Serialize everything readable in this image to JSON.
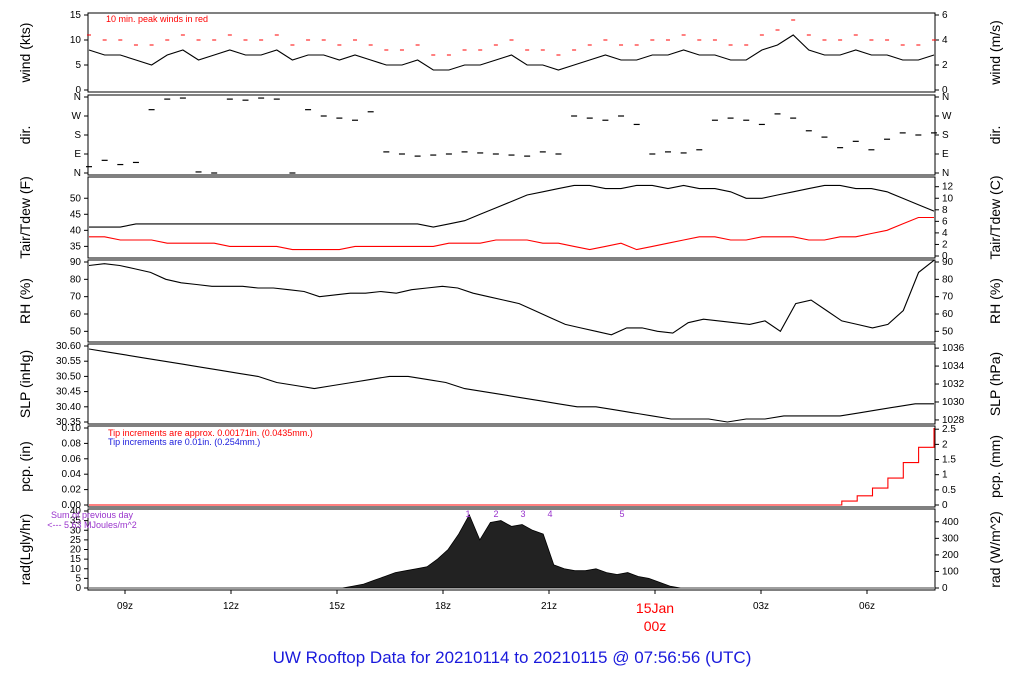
{
  "footer_title": "UW Rooftop Data for 20210114  to  20210115 @ 07:56:56  (UTC)",
  "colors": {
    "line": "#000000",
    "accent": "#ff0000",
    "blue": "#1a1adc",
    "purple": "#9933cc"
  },
  "x_axis": {
    "ticks": [
      "09z",
      "12z",
      "15z",
      "18z",
      "21z",
      "00z",
      "03z",
      "06z"
    ],
    "date_label": "15Jan",
    "date_sub": "00z"
  },
  "chart_data": [
    {
      "type": "line",
      "ylabel_left": "wind (kts)",
      "ylabel_right": "wind (m/s)",
      "ylim": [
        0,
        15
      ],
      "yticks_left": [
        "0",
        "5",
        "10",
        "15"
      ],
      "yticks_right": [
        "0",
        "2",
        "4",
        "6"
      ],
      "annotation": "10 min. peak winds in red",
      "series": [
        {
          "values": [
            8,
            7,
            7,
            6,
            5,
            7,
            8,
            6,
            7,
            8,
            7,
            7,
            8,
            6,
            7,
            7,
            6,
            7,
            6,
            5,
            5,
            6,
            4,
            4,
            5,
            5,
            6,
            7,
            5,
            5,
            4,
            5,
            6,
            7,
            6,
            6,
            7,
            7,
            8,
            7,
            7,
            6,
            6,
            8,
            9,
            11,
            8,
            7,
            7,
            8,
            7,
            7,
            6,
            6,
            7
          ]
        },
        {
          "name": "10 min. peak winds in red",
          "values": [
            11,
            10,
            10,
            9,
            9,
            10,
            11,
            10,
            10,
            11,
            10,
            10,
            11,
            9,
            10,
            10,
            9,
            10,
            9,
            8,
            8,
            9,
            7,
            7,
            8,
            8,
            9,
            10,
            8,
            8,
            7,
            8,
            9,
            10,
            9,
            9,
            10,
            10,
            11,
            10,
            10,
            9,
            9,
            11,
            12,
            14,
            11,
            10,
            10,
            11,
            10,
            10,
            9,
            9,
            10
          ]
        }
      ]
    },
    {
      "type": "scatter",
      "ylabel": "dir.",
      "yticks_left": [
        "N",
        "E",
        "S",
        "W",
        "N"
      ],
      "yticks_right": [
        "N",
        "E",
        "S",
        "W",
        "N"
      ],
      "values": [
        30,
        60,
        40,
        50,
        300,
        350,
        355,
        5,
        0,
        350,
        345,
        355,
        350,
        0,
        300,
        270,
        260,
        250,
        290,
        100,
        90,
        80,
        85,
        90,
        100,
        95,
        90,
        85,
        80,
        100,
        90,
        270,
        260,
        250,
        270,
        230,
        90,
        100,
        95,
        110,
        250,
        260,
        250,
        230,
        280,
        260,
        200,
        170,
        120,
        150,
        110,
        160,
        190,
        180,
        190
      ]
    },
    {
      "type": "line",
      "ylabel_left": "Tair/Tdew (F)",
      "ylabel_right": "Tair/Tdew (C)",
      "ylim": [
        32,
        56
      ],
      "yticks_left": [
        "35",
        "40",
        "45",
        "50"
      ],
      "yticks_right": [
        "0",
        "2",
        "4",
        "6",
        "8",
        "10",
        "12"
      ],
      "series": [
        {
          "values": [
            41,
            41,
            41,
            42,
            42,
            42,
            42,
            42,
            42,
            42,
            42,
            42,
            42,
            42,
            42,
            42,
            42,
            42,
            42,
            42,
            42,
            42,
            41,
            42,
            43,
            45,
            47,
            49,
            51,
            52,
            53,
            54,
            54,
            53,
            53,
            54,
            54,
            53,
            54,
            53,
            53,
            52,
            50,
            50,
            51,
            52,
            53,
            54,
            54,
            53,
            53,
            52,
            50,
            48,
            46
          ]
        },
        {
          "values": [
            38,
            38,
            37,
            37,
            37,
            36,
            36,
            36,
            36,
            35,
            35,
            35,
            35,
            34,
            34,
            34,
            34,
            35,
            35,
            35,
            35,
            35,
            35,
            36,
            36,
            36,
            37,
            37,
            37,
            36,
            36,
            35,
            34,
            35,
            36,
            34,
            35,
            36,
            37,
            38,
            38,
            37,
            37,
            38,
            38,
            38,
            37,
            37,
            38,
            38,
            39,
            40,
            42,
            44,
            44
          ]
        }
      ]
    },
    {
      "type": "line",
      "ylabel_left": "RH (%)",
      "ylabel_right": "RH (%)",
      "ylim": [
        45,
        90
      ],
      "yticks_left": [
        "50",
        "60",
        "70",
        "80",
        "90"
      ],
      "yticks_right": [
        "50",
        "60",
        "70",
        "80",
        "90"
      ],
      "series": [
        {
          "values": [
            88,
            89,
            88,
            86,
            84,
            80,
            78,
            77,
            76,
            76,
            76,
            75,
            75,
            74,
            73,
            70,
            71,
            72,
            72,
            73,
            72,
            74,
            75,
            76,
            75,
            72,
            70,
            68,
            66,
            62,
            58,
            54,
            52,
            50,
            48,
            52,
            52,
            50,
            49,
            55,
            57,
            56,
            55,
            54,
            56,
            50,
            66,
            68,
            62,
            56,
            54,
            52,
            54,
            62,
            84,
            91
          ]
        }
      ]
    },
    {
      "type": "line",
      "ylabel_left": "SLP (inHg)",
      "ylabel_right": "SLP (hPa)",
      "ylim": [
        30.35,
        30.6
      ],
      "yticks_left": [
        "30.35",
        "30.40",
        "30.45",
        "30.50",
        "30.55",
        "30.60"
      ],
      "yticks_right": [
        "1028",
        "1030",
        "1032",
        "1034",
        "1036"
      ],
      "series": [
        {
          "values": [
            30.59,
            30.58,
            30.57,
            30.56,
            30.55,
            30.54,
            30.53,
            30.52,
            30.51,
            30.5,
            30.48,
            30.47,
            30.46,
            30.47,
            30.48,
            30.49,
            30.5,
            30.5,
            30.49,
            30.48,
            30.46,
            30.45,
            30.44,
            30.43,
            30.42,
            30.41,
            30.4,
            30.4,
            30.39,
            30.38,
            30.37,
            30.36,
            30.36,
            30.36,
            30.35,
            30.36,
            30.36,
            30.37,
            30.37,
            30.37,
            30.37,
            30.38,
            30.39,
            30.4,
            30.41,
            30.41
          ]
        }
      ]
    },
    {
      "type": "step",
      "ylabel_left": "pcp. (in)",
      "ylabel_right": "pcp. (mm)",
      "ylim": [
        0,
        0.1
      ],
      "yticks_left": [
        "0.00",
        "0.02",
        "0.04",
        "0.06",
        "0.08",
        "0.10"
      ],
      "yticks_right": [
        "0",
        "0.5",
        "1",
        "1.5",
        "2",
        "2.5"
      ],
      "annotation_red": "Tip increments are approx. 0.00171in. (0.0435mm.)",
      "annotation_blue": "Tip increments are 0.01in. (0.254mm.)",
      "series": [
        {
          "values": [
            0,
            0,
            0,
            0,
            0,
            0,
            0,
            0,
            0,
            0,
            0,
            0,
            0,
            0,
            0,
            0,
            0,
            0,
            0,
            0,
            0,
            0,
            0,
            0,
            0,
            0,
            0,
            0,
            0,
            0,
            0,
            0,
            0,
            0,
            0,
            0,
            0,
            0,
            0,
            0,
            0,
            0,
            0,
            0,
            0,
            0,
            0,
            0,
            0,
            0.005,
            0.012,
            0.022,
            0.035,
            0.055,
            0.075,
            0.1
          ]
        }
      ]
    },
    {
      "type": "area",
      "ylabel_left": "rad(Lgly/hr)",
      "ylabel_right": "rad (W/m^2)",
      "ylim": [
        0,
        40
      ],
      "yticks_left": [
        "0",
        "5",
        "10",
        "15",
        "20",
        "25",
        "30",
        "35",
        "40"
      ],
      "yticks_right": [
        "0",
        "100",
        "200",
        "300",
        "400"
      ],
      "annotation_line1": "Sum of previous day",
      "annotation_line2": "<--- 5.63 MJoules/m^2",
      "markers": [
        "1",
        "2",
        "3",
        "4",
        "5"
      ],
      "series": [
        {
          "values": [
            0,
            0,
            0,
            0,
            0,
            0,
            0,
            0,
            0,
            0,
            0,
            0,
            0,
            0,
            0,
            0,
            0,
            0,
            0,
            0,
            0,
            0,
            0,
            0,
            0,
            1,
            2,
            4,
            6,
            8,
            9,
            10,
            11,
            15,
            20,
            28,
            38,
            25,
            34,
            35,
            32,
            33,
            30,
            28,
            12,
            10,
            9,
            9,
            10,
            8,
            7,
            8,
            6,
            5,
            3,
            1,
            0,
            0,
            0,
            0,
            0,
            0,
            0,
            0,
            0,
            0,
            0,
            0,
            0,
            0,
            0,
            0,
            0,
            0,
            0,
            0,
            0,
            0,
            0,
            0,
            0
          ]
        }
      ]
    }
  ]
}
